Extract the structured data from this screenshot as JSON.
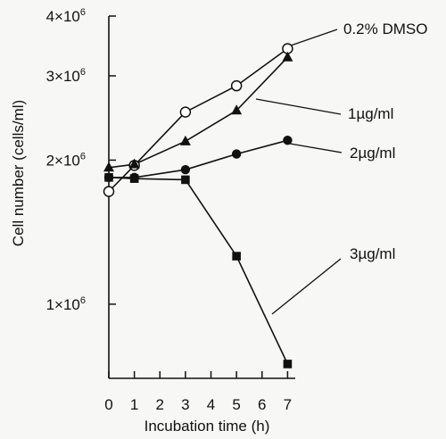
{
  "chart_data": {
    "type": "line",
    "title": "",
    "xlabel": "Incubation time (h)",
    "ylabel": "Cell number (cells/ml)",
    "yscale": "log",
    "grid": false,
    "xlim": [
      0,
      7.3
    ],
    "ylim": [
      700000,
      4000000
    ],
    "xticks": [
      0,
      1,
      2,
      3,
      4,
      5,
      6,
      7
    ],
    "xtick_labels": [
      "0",
      "1",
      "2",
      "3",
      "4",
      "5",
      "6",
      "7"
    ],
    "yticks": [
      1000000,
      2000000,
      3000000,
      4000000
    ],
    "ytick_labels": [
      {
        "base": "1×10",
        "exp": "6"
      },
      {
        "base": "2×10",
        "exp": "6"
      },
      {
        "base": "3×10",
        "exp": "6"
      },
      {
        "base": "4×10",
        "exp": "6"
      }
    ],
    "series": [
      {
        "name": "0.2% DMSO",
        "marker": "open-circle",
        "x": [
          0,
          1,
          3,
          5,
          7
        ],
        "y": [
          1720000,
          1950000,
          2520000,
          2860000,
          3420000
        ]
      },
      {
        "name": "1µg/ml",
        "marker": "triangle",
        "x": [
          0,
          1,
          3,
          5,
          7
        ],
        "y": [
          1930000,
          1960000,
          2190000,
          2540000,
          3280000
        ]
      },
      {
        "name": "2µg/ml",
        "marker": "filled-circle",
        "x": [
          0,
          1,
          3,
          5,
          7
        ],
        "y": [
          1840000,
          1840000,
          1910000,
          2060000,
          2200000
        ]
      },
      {
        "name": "3µg/ml",
        "marker": "filled-square",
        "x": [
          0,
          1,
          3,
          5,
          7
        ],
        "y": [
          1840000,
          1830000,
          1820000,
          1260000,
          750000
        ]
      }
    ]
  }
}
